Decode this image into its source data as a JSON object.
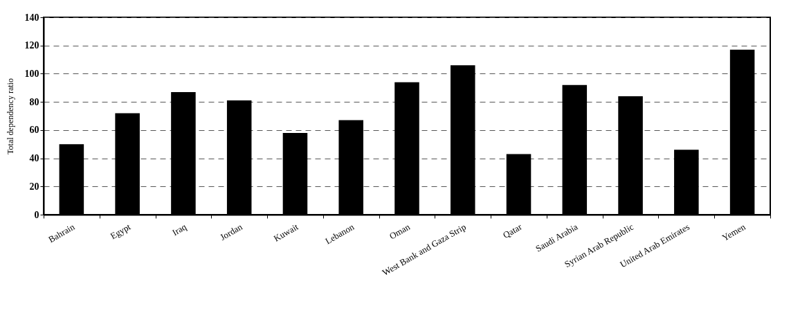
{
  "chart_data": {
    "type": "bar",
    "ylabel": "Total dependency ratio",
    "categories": [
      "Bahrain",
      "Egypt",
      "Iraq",
      "Jordan",
      "Kuwait",
      "Lebanon",
      "Oman",
      "West Bank and Gaza Strip",
      "Qatar",
      "Saudi Arabia",
      "Syrian Arab Republic",
      "United Arab Emirates",
      "Yemen"
    ],
    "values": [
      50,
      72,
      87,
      81,
      58,
      67,
      94,
      106,
      43,
      92,
      84,
      46,
      117
    ],
    "color": "#000000",
    "ylim": [
      0,
      140
    ],
    "yticks": [
      0,
      20,
      40,
      60,
      80,
      100,
      120,
      140
    ],
    "grid": "y"
  }
}
